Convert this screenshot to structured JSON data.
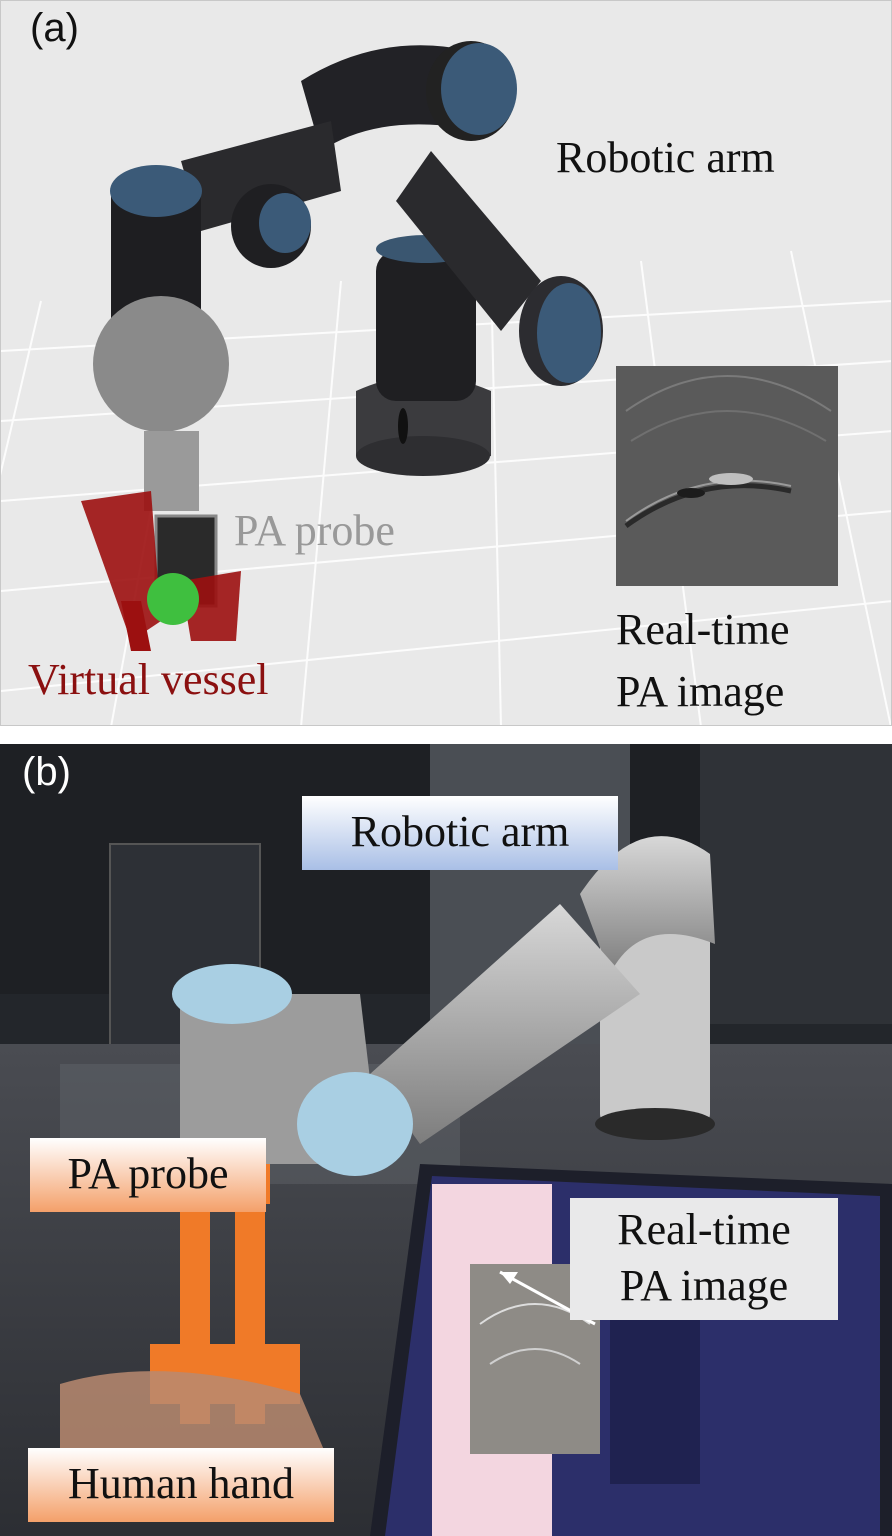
{
  "panel_a": {
    "label": "(a)",
    "robotic_arm": "Robotic arm",
    "pa_probe": "PA probe",
    "virtual_vessel": "Virtual vessel",
    "realtime_line1": "Real-time",
    "realtime_line2": "PA image"
  },
  "panel_b": {
    "label": "(b)",
    "robotic_arm": "Robotic arm",
    "realtime_line1": "Real-time",
    "realtime_line2": "PA image",
    "pa_probe": "PA probe",
    "human_hand": "Human hand"
  },
  "colors": {
    "vessel_red": "#8b1010",
    "probe_label_gray": "#999999",
    "arm_box_blue": "#a9bfe6",
    "probe_box_orange": "#f4a06a"
  }
}
